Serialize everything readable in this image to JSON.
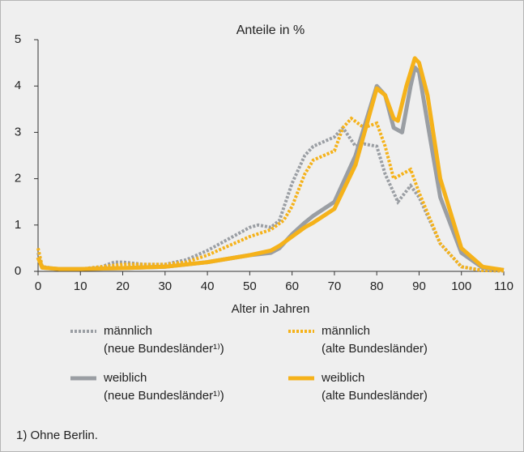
{
  "chart_data": {
    "type": "line",
    "title": "Anteile in %",
    "x_label": "Alter in Jahren",
    "xlim": [
      0,
      110
    ],
    "xticks": [
      0,
      10,
      20,
      30,
      40,
      50,
      60,
      70,
      80,
      90,
      100,
      110
    ],
    "ylim": [
      0,
      5
    ],
    "yticks": [
      0,
      1,
      2,
      3,
      4,
      5
    ],
    "grid": false,
    "series": [
      {
        "name": "männlich",
        "group": "(neue Bundesländer¹⁾)",
        "color": "#9a9ea3",
        "dashed": true,
        "x": [
          0,
          1,
          5,
          10,
          15,
          18,
          20,
          25,
          30,
          35,
          40,
          45,
          50,
          52,
          55,
          57,
          60,
          63,
          65,
          70,
          72,
          75,
          77,
          80,
          82,
          85,
          88,
          90,
          95,
          100,
          105,
          110
        ],
        "values": [
          0.4,
          0.1,
          0.05,
          0.05,
          0.1,
          0.2,
          0.2,
          0.15,
          0.15,
          0.25,
          0.45,
          0.7,
          0.95,
          1.0,
          0.95,
          1.1,
          1.9,
          2.5,
          2.7,
          2.9,
          3.1,
          2.7,
          2.75,
          2.7,
          2.1,
          1.5,
          1.85,
          1.6,
          0.6,
          0.1,
          0.02,
          0.01
        ]
      },
      {
        "name": "männlich",
        "group": "(alte Bundesländer)",
        "color": "#f5b21a",
        "dashed": true,
        "x": [
          0,
          1,
          5,
          10,
          15,
          20,
          25,
          30,
          35,
          40,
          45,
          50,
          55,
          58,
          60,
          63,
          65,
          70,
          72,
          74,
          77,
          80,
          82,
          84,
          86,
          88,
          90,
          95,
          100,
          105,
          110
        ],
        "values": [
          0.5,
          0.1,
          0.05,
          0.05,
          0.1,
          0.15,
          0.15,
          0.15,
          0.2,
          0.35,
          0.55,
          0.75,
          0.9,
          1.1,
          1.4,
          2.1,
          2.4,
          2.6,
          3.1,
          3.3,
          3.1,
          3.2,
          2.7,
          2.0,
          2.1,
          2.2,
          1.7,
          0.6,
          0.1,
          0.02,
          0.01
        ]
      },
      {
        "name": "weiblich",
        "group": "(neue Bundesländer¹⁾)",
        "color": "#9a9ea3",
        "dashed": false,
        "x": [
          0,
          1,
          5,
          10,
          20,
          30,
          40,
          50,
          55,
          57,
          60,
          63,
          65,
          70,
          75,
          80,
          82,
          84,
          86,
          88,
          89,
          90,
          92,
          95,
          100,
          105,
          110
        ],
        "values": [
          0.3,
          0.08,
          0.05,
          0.05,
          0.07,
          0.1,
          0.2,
          0.35,
          0.4,
          0.5,
          0.8,
          1.05,
          1.2,
          1.5,
          2.5,
          4.0,
          3.8,
          3.1,
          3.0,
          4.0,
          4.4,
          4.3,
          3.2,
          1.6,
          0.4,
          0.08,
          0.03
        ]
      },
      {
        "name": "weiblich",
        "group": "(alte Bundesländer)",
        "color": "#f5b21a",
        "dashed": false,
        "x": [
          0,
          1,
          5,
          10,
          20,
          30,
          40,
          50,
          55,
          57,
          60,
          63,
          65,
          70,
          75,
          80,
          82,
          84,
          85,
          87,
          89,
          90,
          92,
          95,
          100,
          105,
          110
        ],
        "values": [
          0.3,
          0.08,
          0.05,
          0.05,
          0.07,
          0.1,
          0.2,
          0.35,
          0.45,
          0.55,
          0.75,
          0.95,
          1.05,
          1.35,
          2.3,
          3.95,
          3.8,
          3.3,
          3.25,
          4.0,
          4.6,
          4.5,
          3.8,
          2.0,
          0.5,
          0.1,
          0.03
        ]
      }
    ],
    "footnote": "1) Ohne Berlin."
  }
}
